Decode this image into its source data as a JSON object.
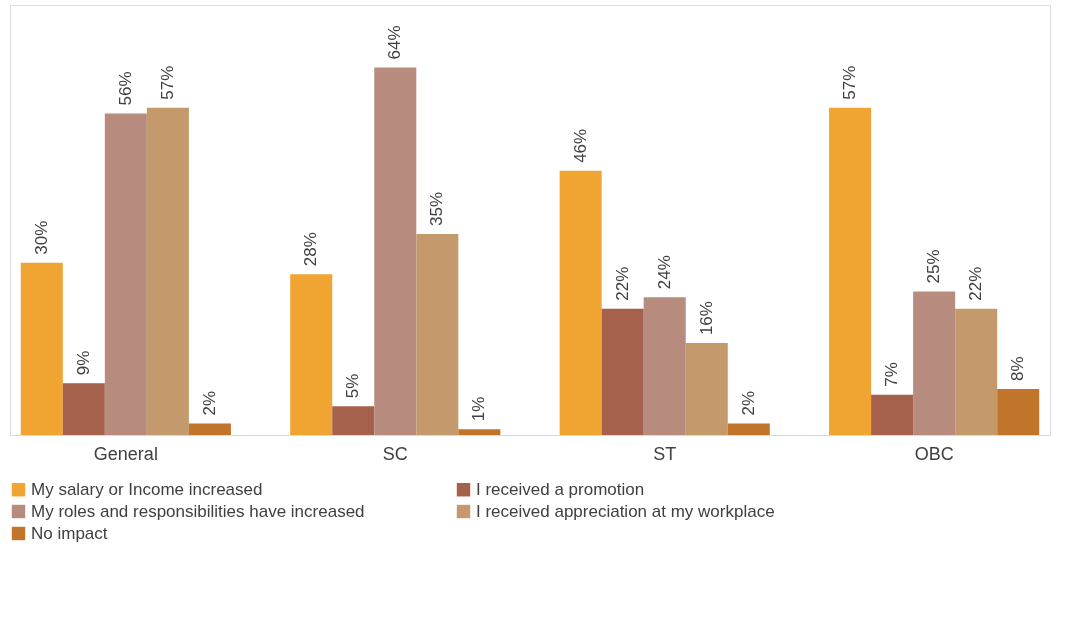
{
  "chart_data": {
    "type": "bar",
    "categories": [
      "General",
      "SC",
      "ST",
      "OBC"
    ],
    "series": [
      {
        "name": "My salary or Income increased",
        "color": "#f0a431",
        "values": [
          30,
          28,
          46,
          57
        ],
        "value_labels": [
          "30%",
          "28%",
          "46%",
          "57%"
        ]
      },
      {
        "name": "I received a promotion",
        "color": "#a5614b",
        "values": [
          9,
          5,
          22,
          7
        ],
        "value_labels": [
          "9%",
          "5%",
          "22%",
          "7%"
        ]
      },
      {
        "name": "My roles and responsibilities have increased",
        "color": "#b78b7e",
        "values": [
          56,
          64,
          24,
          25
        ],
        "value_labels": [
          "56%",
          "64%",
          "24%",
          "25%"
        ]
      },
      {
        "name": "I received appreciation at my workplace",
        "color": "#c49a6c",
        "values": [
          57,
          35,
          16,
          22
        ],
        "value_labels": [
          "57%",
          "35%",
          "16%",
          "22%"
        ]
      },
      {
        "name": "No impact",
        "color": "#c0752a",
        "values": [
          2,
          1,
          2,
          8
        ],
        "value_labels": [
          "2%",
          "1%",
          "2%",
          "8%"
        ]
      }
    ],
    "tick_labels": "x",
    "grid": false,
    "legend": "bottom"
  }
}
